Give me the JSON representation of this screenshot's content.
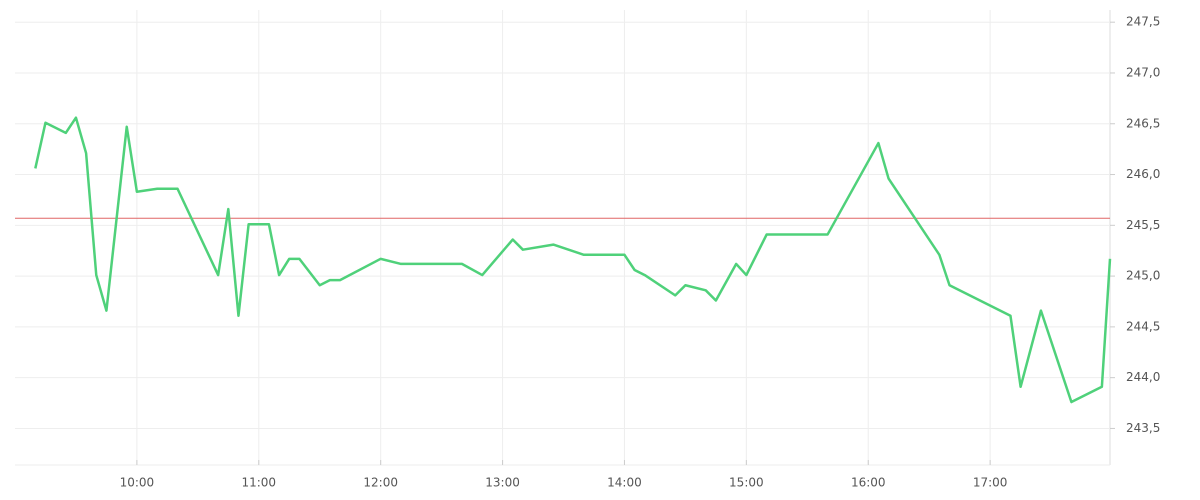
{
  "chart_data": {
    "type": "line",
    "x": [
      "09:10",
      "09:15",
      "09:25",
      "09:30",
      "09:35",
      "09:40",
      "09:45",
      "09:55",
      "10:00",
      "10:10",
      "10:20",
      "10:40",
      "10:45",
      "10:50",
      "10:55",
      "11:05",
      "11:10",
      "11:15",
      "11:20",
      "11:30",
      "11:35",
      "11:40",
      "12:00",
      "12:10",
      "12:40",
      "12:50",
      "13:05",
      "13:10",
      "13:25",
      "13:40",
      "14:00",
      "14:05",
      "14:10",
      "14:25",
      "14:30",
      "14:40",
      "14:45",
      "14:55",
      "15:00",
      "15:10",
      "15:40",
      "16:05",
      "16:10",
      "16:35",
      "16:40",
      "17:10",
      "17:15",
      "17:25",
      "17:40",
      "17:55",
      "17:59"
    ],
    "series": [
      {
        "color": "#4fd17a",
        "values": [
          246.06,
          246.51,
          246.41,
          246.56,
          246.21,
          245.01,
          244.66,
          246.47,
          245.83,
          245.86,
          245.86,
          245.01,
          245.66,
          244.61,
          245.51,
          245.51,
          245.01,
          245.17,
          245.17,
          244.91,
          244.96,
          244.96,
          245.17,
          245.12,
          245.12,
          245.01,
          245.36,
          245.26,
          245.31,
          245.21,
          245.21,
          245.06,
          245.01,
          244.81,
          244.91,
          244.86,
          244.76,
          245.12,
          245.01,
          245.41,
          245.41,
          246.31,
          245.96,
          245.21,
          244.91,
          244.61,
          243.91,
          244.66,
          243.76,
          243.91,
          245.17
        ]
      }
    ],
    "reference_line": {
      "value": 245.57,
      "color": "#e06666"
    },
    "xlim": [
      "09:00",
      "17:59"
    ],
    "xticks": [
      "10:00",
      "11:00",
      "12:00",
      "13:00",
      "14:00",
      "15:00",
      "16:00",
      "17:00"
    ],
    "ylim": [
      243.14,
      247.62
    ],
    "yticks": [
      {
        "value": 243.5,
        "label": "243,5"
      },
      {
        "value": 244,
        "label": "244,0"
      },
      {
        "value": 244.5,
        "label": "244,5"
      },
      {
        "value": 245,
        "label": "245,0"
      },
      {
        "value": 245.5,
        "label": "245,5"
      },
      {
        "value": 246,
        "label": "246,0"
      },
      {
        "value": 246.5,
        "label": "246,5"
      },
      {
        "value": 247,
        "label": "247,0"
      },
      {
        "value": 247.5,
        "label": "247,5"
      }
    ],
    "grid": true
  }
}
